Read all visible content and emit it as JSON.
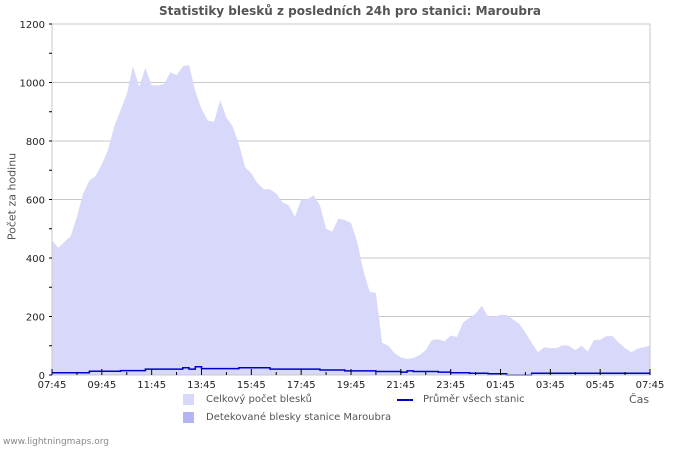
{
  "title": "Statistiky blesků z posledních 24h pro stanici: Maroubra",
  "footer": "www.lightningmaps.org",
  "colors": {
    "total_fill": "#d8d8fa",
    "station_fill": "#b4b4f5",
    "average_line": "#0000cc",
    "grid": "#c8c8c8",
    "axis": "#c8c8c8",
    "text": "#555555"
  },
  "legend": {
    "total": "Celkový počet blesků",
    "station": "Detekované blesky stanice Maroubra",
    "average": "Průměr všech stanic"
  },
  "chart_data": {
    "type": "area",
    "title": "Statistiky blesků z posledních 24h pro stanici: Maroubra",
    "xlabel": "Čas",
    "ylabel": "Počet za hodinu",
    "ylim": [
      0,
      1200
    ],
    "yticks": [
      0,
      200,
      400,
      600,
      800,
      1000,
      1200
    ],
    "xticks": [
      "07:45",
      "09:45",
      "11:45",
      "13:45",
      "15:45",
      "17:45",
      "19:45",
      "21:45",
      "23:45",
      "01:45",
      "03:45",
      "05:45",
      "07:45"
    ],
    "grid": true,
    "legend_position": "bottom",
    "x_interval_minutes": 15,
    "series": [
      {
        "name": "Celkový počet blesků",
        "type": "area",
        "values": [
          460,
          435,
          455,
          475,
          540,
          620,
          665,
          680,
          720,
          770,
          850,
          905,
          960,
          1055,
          985,
          1050,
          990,
          990,
          995,
          1035,
          1025,
          1055,
          1060,
          970,
          910,
          870,
          865,
          940,
          880,
          850,
          790,
          710,
          690,
          655,
          635,
          635,
          620,
          590,
          580,
          540,
          600,
          600,
          615,
          580,
          500,
          490,
          535,
          530,
          520,
          455,
          355,
          285,
          280,
          110,
          100,
          75,
          60,
          55,
          58,
          68,
          85,
          120,
          122,
          115,
          135,
          130,
          180,
          195,
          210,
          237,
          200,
          200,
          205,
          205,
          190,
          175,
          145,
          110,
          78,
          95,
          92,
          92,
          102,
          100,
          85,
          100,
          80,
          120,
          120,
          133,
          133,
          110,
          92,
          78,
          90,
          95,
          100
        ]
      },
      {
        "name": "Detekované blesky stanice Maroubra",
        "type": "area",
        "values": []
      },
      {
        "name": "Průměr všech stanic",
        "type": "line",
        "values": [
          8,
          8,
          8,
          8,
          8,
          8,
          13,
          13,
          13,
          13,
          13,
          15,
          15,
          15,
          15,
          20,
          20,
          20,
          20,
          20,
          20,
          25,
          20,
          28,
          22,
          22,
          22,
          22,
          22,
          22,
          25,
          25,
          25,
          25,
          25,
          20,
          20,
          20,
          20,
          20,
          20,
          20,
          20,
          17,
          17,
          17,
          17,
          14,
          14,
          14,
          14,
          14,
          12,
          12,
          12,
          12,
          10,
          14,
          12,
          12,
          12,
          12,
          10,
          10,
          8,
          8,
          8,
          6,
          6,
          6,
          4,
          4,
          4,
          0,
          0,
          0,
          0,
          6,
          6,
          6,
          6,
          6,
          6,
          6,
          6,
          6,
          6,
          6,
          6,
          6,
          6,
          6,
          6,
          6,
          6,
          6,
          6
        ]
      }
    ]
  }
}
